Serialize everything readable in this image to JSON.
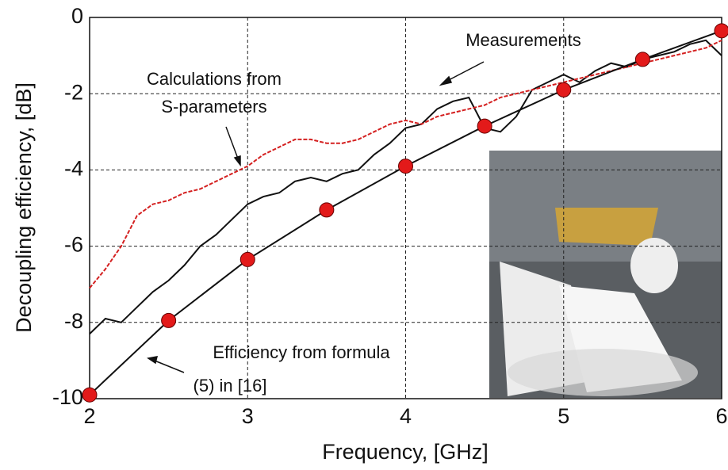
{
  "chart_data": {
    "type": "line",
    "xlabel": "Frequency, [GHz]",
    "ylabel": "Decoupling efficiency, [dB]",
    "xlim": [
      2,
      6
    ],
    "ylim": [
      -10,
      0
    ],
    "xticks": [
      2,
      3,
      4,
      5,
      6
    ],
    "yticks": [
      0,
      -2,
      -4,
      -6,
      -8,
      -10
    ],
    "grid": true,
    "annotations": [
      "Measurements",
      "Calculations from",
      "S-parameters",
      "Efficiency from formula",
      "(5) in [16]"
    ],
    "x": [
      2.0,
      2.1,
      2.2,
      2.3,
      2.4,
      2.5,
      2.6,
      2.7,
      2.8,
      2.9,
      3.0,
      3.1,
      3.2,
      3.3,
      3.4,
      3.5,
      3.6,
      3.7,
      3.8,
      3.9,
      4.0,
      4.1,
      4.2,
      4.3,
      4.4,
      4.5,
      4.6,
      4.7,
      4.8,
      4.9,
      5.0,
      5.1,
      5.2,
      5.3,
      5.4,
      5.5,
      5.6,
      5.7,
      5.8,
      5.9,
      6.0
    ],
    "series": [
      {
        "color": "#111111",
        "values": [
          -8.3,
          -7.9,
          -8.0,
          -7.6,
          -7.2,
          -6.9,
          -6.5,
          -6.0,
          -5.7,
          -5.3,
          -4.9,
          -4.7,
          -4.6,
          -4.3,
          -4.2,
          -4.3,
          -4.1,
          -4.0,
          -3.6,
          -3.3,
          -2.9,
          -2.8,
          -2.4,
          -2.2,
          -2.1,
          -2.9,
          -3.0,
          -2.6,
          -1.9,
          -1.7,
          -1.5,
          -1.7,
          -1.4,
          -1.2,
          -1.3,
          -1.1,
          -1.0,
          -0.9,
          -0.7,
          -0.6,
          -1.0
        ]
      },
      {
        "color": "#d42020",
        "dashed": true,
        "values": [
          -7.1,
          -6.6,
          -6.0,
          -5.2,
          -4.9,
          -4.8,
          -4.6,
          -4.5,
          -4.3,
          -4.1,
          -3.9,
          -3.6,
          -3.4,
          -3.2,
          -3.2,
          -3.3,
          -3.3,
          -3.2,
          -3.0,
          -2.8,
          -2.7,
          -2.8,
          -2.6,
          -2.5,
          -2.4,
          -2.3,
          -2.1,
          -2.0,
          -1.9,
          -1.8,
          -1.7,
          -1.6,
          -1.5,
          -1.4,
          -1.3,
          -1.2,
          -1.1,
          -1.0,
          -0.9,
          -0.8,
          -0.6
        ]
      },
      {
        "color": "#111111",
        "marker_color": "#e31a1a",
        "x": [
          2,
          2.5,
          3,
          3.5,
          4,
          4.5,
          5,
          5.5,
          6
        ],
        "values": [
          -9.9,
          -7.95,
          -6.35,
          -5.05,
          -3.9,
          -2.85,
          -1.9,
          -1.1,
          -0.35
        ]
      }
    ]
  }
}
